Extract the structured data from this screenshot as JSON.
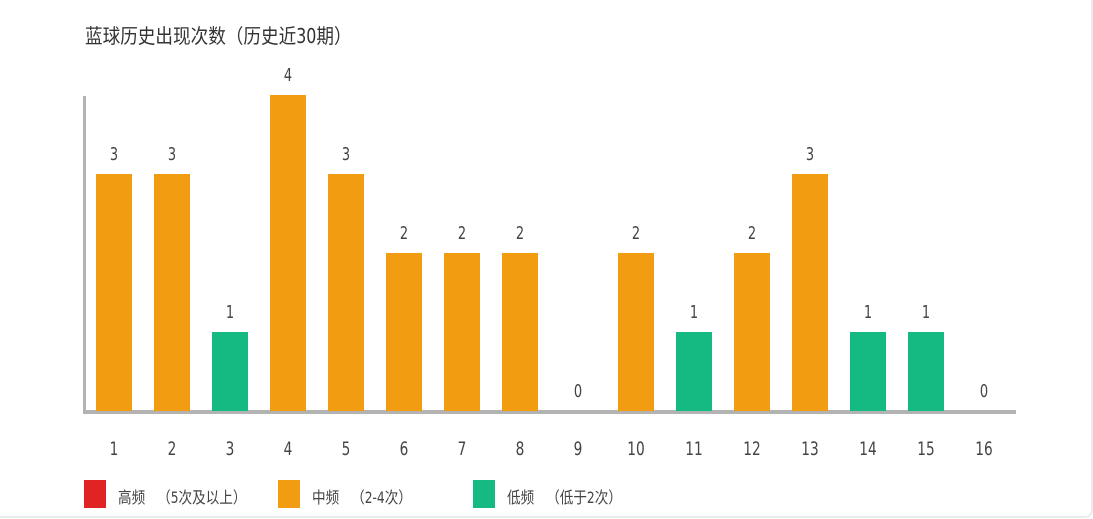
{
  "title": "蓝球历史出现次数（历史近30期）",
  "colors": {
    "high": "#e02424",
    "mid": "#f29c11",
    "low": "#15b982",
    "axis": "#b3b3b3"
  },
  "legend": [
    {
      "key": "high",
      "label": "高频",
      "note": "（5次及以上）",
      "color": "#e02424"
    },
    {
      "key": "mid",
      "label": "中频",
      "note": "（2-4次）",
      "color": "#f29c11"
    },
    {
      "key": "low",
      "label": "低频",
      "note": "（低于2次）",
      "color": "#15b982"
    }
  ],
  "chart_data": {
    "type": "bar",
    "title": "蓝球历史出现次数（历史近30期）",
    "xlabel": "",
    "ylabel": "",
    "categories": [
      "1",
      "2",
      "3",
      "4",
      "5",
      "6",
      "7",
      "8",
      "9",
      "10",
      "11",
      "12",
      "13",
      "14",
      "15",
      "16"
    ],
    "values": [
      3,
      3,
      1,
      4,
      3,
      2,
      2,
      2,
      0,
      2,
      1,
      2,
      3,
      1,
      1,
      0
    ],
    "bar_categories": [
      "mid",
      "mid",
      "low",
      "mid",
      "mid",
      "mid",
      "mid",
      "mid",
      "low",
      "mid",
      "low",
      "mid",
      "mid",
      "low",
      "low",
      "low"
    ],
    "ylim": [
      0,
      4
    ],
    "grid": false,
    "data_labels": true,
    "legend_position": "bottom-left",
    "legend": [
      "高频 （5次及以上）",
      "中频 （2-4次）",
      "低频 （低于2次）"
    ]
  }
}
